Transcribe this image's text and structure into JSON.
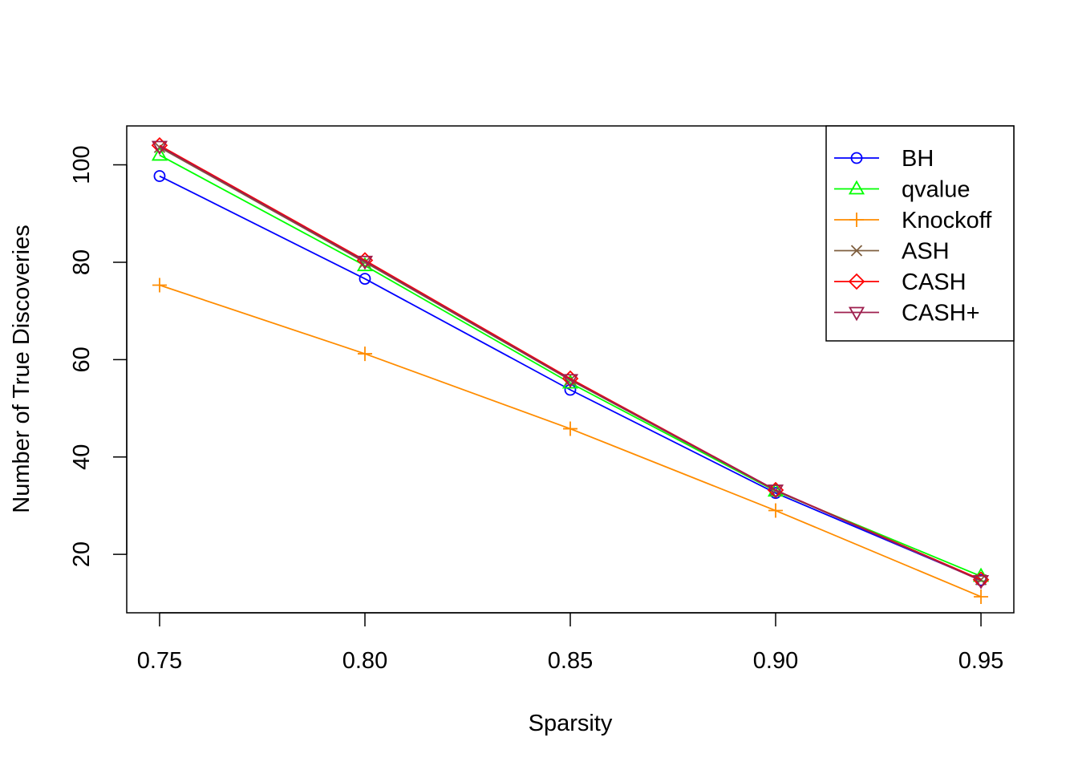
{
  "chart_data": {
    "type": "line",
    "title": "",
    "xlabel": "Sparsity",
    "ylabel": "Number of True Discoveries",
    "x": [
      0.75,
      0.8,
      0.85,
      0.9,
      0.95
    ],
    "x_tick_labels": [
      "0.75",
      "0.80",
      "0.85",
      "0.90",
      "0.95"
    ],
    "y_ticks": [
      20,
      40,
      60,
      80,
      100
    ],
    "y_tick_labels": [
      "20",
      "40",
      "60",
      "80",
      "100"
    ],
    "xlim": [
      0.742,
      0.958
    ],
    "ylim": [
      8,
      108
    ],
    "grid": false,
    "legend_position": "top-right",
    "series": [
      {
        "name": "BH",
        "color": "#0000FF",
        "marker": "circle",
        "values": [
          97.7,
          76.6,
          53.8,
          32.6,
          14.7
        ]
      },
      {
        "name": "qvalue",
        "color": "#00FF00",
        "marker": "triangle",
        "values": [
          102.0,
          79.3,
          55.2,
          33.0,
          15.5
        ]
      },
      {
        "name": "Knockoff",
        "color": "#FF8C00",
        "marker": "plus",
        "values": [
          75.3,
          61.2,
          45.8,
          29.0,
          11.3
        ]
      },
      {
        "name": "ASH",
        "color": "#7F5F3F",
        "marker": "cross",
        "values": [
          103.6,
          80.0,
          55.8,
          33.1,
          14.8
        ]
      },
      {
        "name": "CASH",
        "color": "#FF0000",
        "marker": "diamond",
        "values": [
          104.0,
          80.4,
          56.1,
          33.2,
          14.8
        ]
      },
      {
        "name": "CASH+",
        "color": "#9E1F4E",
        "marker": "triangle-down",
        "values": [
          103.8,
          80.2,
          55.9,
          33.2,
          14.6
        ]
      }
    ]
  }
}
